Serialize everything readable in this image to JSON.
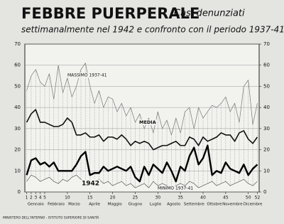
{
  "chart_data": {
    "type": "line",
    "title": "FEBBRE PUERPERALE",
    "subtitle": [
      "Casi denunziati",
      "settimanalmente nel 1942 e confronto con il periodo 1937-41 ."
    ],
    "footer": "MINISTERO DELL'INTERNO - ISTITUTO SUPERIORE DI SANITÀ",
    "x": [
      1,
      2,
      3,
      4,
      5,
      6,
      7,
      8,
      9,
      10,
      11,
      12,
      13,
      14,
      15,
      16,
      17,
      18,
      19,
      20,
      21,
      22,
      23,
      24,
      25,
      26,
      27,
      28,
      29,
      30,
      31,
      32,
      33,
      34,
      35,
      36,
      37,
      38,
      39,
      40,
      41,
      42,
      43,
      44,
      45,
      46,
      47,
      48,
      49,
      50,
      51,
      52
    ],
    "xlim": [
      0.6,
      52.4
    ],
    "xticks": [
      1,
      2,
      3,
      4,
      5,
      10,
      15,
      20,
      25,
      30,
      35,
      40,
      45,
      50,
      52
    ],
    "months": [
      "Gennaio",
      "Febbraio",
      "Marzo",
      "Aprile",
      "Maggio",
      "Giugno",
      "Luglio",
      "Agosto",
      "Settembre",
      "Ottobre",
      "Novembre",
      "Dicembre"
    ],
    "ylim": [
      0,
      70
    ],
    "yticks": [
      0,
      10,
      20,
      30,
      40,
      50,
      60,
      70
    ],
    "y2lim": [
      0,
      70
    ],
    "y2ticks": [
      0,
      10,
      20,
      30,
      40,
      50,
      60,
      70
    ],
    "grid": true,
    "annotations": [
      "MASSIMO 1937-41",
      "MEDIA",
      "1942",
      "MINIMO 1937-41"
    ],
    "series": [
      {
        "name": "MASSIMO 1937-41",
        "color": "#777777",
        "values": [
          48,
          55,
          58,
          52,
          50,
          56,
          44,
          60,
          47,
          54,
          45,
          50,
          58,
          61,
          50,
          42,
          48,
          40,
          45,
          44,
          38,
          42,
          36,
          40,
          33,
          37,
          30,
          35,
          28,
          38,
          30,
          34,
          27,
          35,
          28,
          38,
          40,
          30,
          40,
          35,
          38,
          41,
          40,
          42,
          45,
          38,
          42,
          33,
          50,
          53,
          32,
          42
        ]
      },
      {
        "name": "MEDIA",
        "color": "#111111",
        "values": [
          33,
          37,
          39,
          33,
          33,
          32,
          31,
          31,
          32,
          35,
          33,
          27,
          27,
          28,
          26,
          26,
          27,
          24,
          26,
          26,
          25,
          27,
          25,
          22,
          24,
          23,
          24,
          23,
          20,
          21,
          22,
          22,
          23,
          24,
          22,
          22,
          26,
          25,
          22,
          26,
          24,
          25,
          26,
          28,
          27,
          27,
          24,
          28,
          29,
          25,
          23,
          26
        ]
      },
      {
        "name": "1942",
        "color": "#000000",
        "values": [
          8,
          15,
          16,
          13,
          14,
          12,
          14,
          10,
          10,
          10,
          10,
          13,
          17,
          19,
          8,
          9,
          9,
          12,
          10,
          11,
          12,
          11,
          10,
          12,
          7,
          5,
          12,
          8,
          13,
          11,
          9,
          14,
          10,
          5,
          12,
          10,
          17,
          21,
          13,
          16,
          22,
          8,
          10,
          9,
          14,
          11,
          10,
          9,
          13,
          8,
          11,
          13
        ]
      },
      {
        "name": "MINIMO 1937-41",
        "color": "#555555",
        "values": [
          5,
          8,
          7,
          5,
          6,
          7,
          5,
          4,
          6,
          5,
          7,
          8,
          6,
          5,
          4,
          5,
          6,
          4,
          5,
          3,
          4,
          5,
          3,
          4,
          2,
          3,
          4,
          2,
          5,
          3,
          4,
          3,
          2,
          3,
          4,
          3,
          5,
          4,
          2,
          3,
          4,
          5,
          3,
          4,
          5,
          3,
          4,
          5,
          6,
          4,
          3,
          5
        ]
      }
    ]
  }
}
